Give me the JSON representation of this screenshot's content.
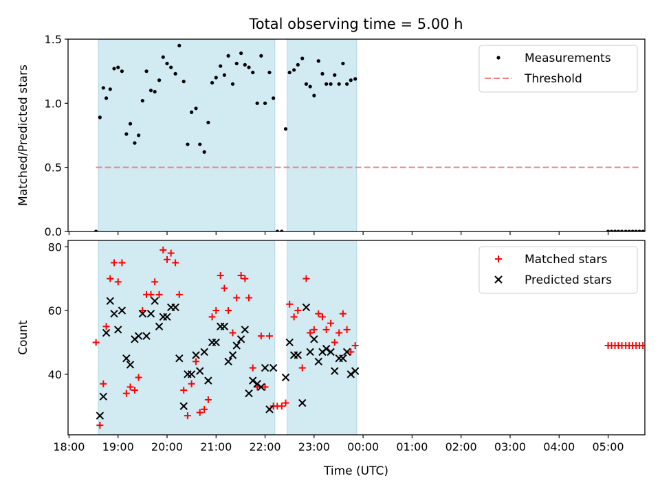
{
  "chart_data": {
    "type": "scatter",
    "title": "Total observing time = 5.00 h",
    "xlabel": "Time (UTC)",
    "x_ticks": [
      "18:00",
      "19:00",
      "20:00",
      "21:00",
      "22:00",
      "23:00",
      "00:00",
      "01:00",
      "02:00",
      "03:00",
      "04:00",
      "05:00"
    ],
    "x_range_hours": [
      17.98,
      29.75
    ],
    "highlight_color": "#add8e6",
    "highlight_spans": [
      [
        18.6,
        22.2
      ],
      [
        22.45,
        23.87
      ]
    ],
    "panels": [
      {
        "ylabel": "Matched/Predicted stars",
        "ylim": [
          0,
          1.5
        ],
        "y_ticks": [
          "0.0",
          "0.5",
          "1.0",
          "1.5"
        ],
        "y_tick_values": [
          0,
          0.5,
          1.0,
          1.5
        ],
        "legend_position": "upper-right",
        "series": [
          {
            "name": "Measurements",
            "marker": "dot",
            "color": "#000000",
            "x": [
              18.55,
              18.63,
              18.7,
              18.76,
              18.84,
              18.92,
              19.0,
              19.08,
              19.17,
              19.25,
              19.34,
              19.42,
              19.5,
              19.58,
              19.67,
              19.75,
              19.84,
              19.92,
              20.0,
              20.08,
              20.17,
              20.25,
              20.34,
              20.42,
              20.5,
              20.59,
              20.67,
              20.76,
              20.84,
              20.92,
              21.0,
              21.09,
              21.17,
              21.25,
              21.34,
              21.42,
              21.51,
              21.59,
              21.67,
              21.75,
              21.84,
              21.92,
              22.0,
              22.09,
              22.17,
              22.25,
              22.34,
              22.42,
              22.5,
              22.59,
              22.67,
              22.76,
              22.84,
              22.92,
              23.0,
              23.09,
              23.17,
              23.25,
              23.34,
              23.42,
              23.51,
              23.59,
              23.67,
              23.75,
              23.84,
              29.0,
              29.07,
              29.14,
              29.21,
              29.28,
              29.36,
              29.43,
              29.5,
              29.57,
              29.64,
              29.71
            ],
            "y": [
              0.0,
              0.89,
              1.12,
              1.04,
              1.11,
              1.27,
              1.28,
              1.25,
              0.76,
              0.84,
              0.69,
              0.75,
              1.02,
              1.25,
              1.1,
              1.09,
              1.18,
              1.36,
              1.31,
              1.28,
              1.23,
              1.45,
              1.17,
              0.68,
              0.93,
              0.96,
              0.68,
              0.62,
              0.85,
              1.16,
              1.2,
              1.29,
              1.22,
              1.37,
              1.15,
              1.31,
              1.39,
              1.3,
              1.28,
              1.24,
              1.0,
              1.37,
              1.0,
              1.24,
              1.04,
              0.0,
              0.0,
              0.8,
              1.24,
              1.26,
              1.3,
              1.35,
              1.15,
              1.13,
              1.06,
              1.33,
              1.23,
              1.15,
              1.15,
              1.22,
              1.15,
              1.31,
              1.15,
              1.18,
              1.19,
              0.0,
              0.0,
              0.0,
              0.0,
              0.0,
              0.0,
              0.0,
              0.0,
              0.0,
              0.0,
              0.0
            ]
          },
          {
            "name": "Threshold",
            "marker": "dashed-line",
            "color": "#f08080",
            "x": [
              18.55,
              29.65
            ],
            "y": [
              0.5,
              0.5
            ]
          }
        ]
      },
      {
        "ylabel": "Count",
        "ylim": [
          21,
          82
        ],
        "y_ticks": [
          "40",
          "60",
          "80"
        ],
        "y_tick_values": [
          40,
          60,
          80
        ],
        "legend_position": "upper-right",
        "series": [
          {
            "name": "Matched stars",
            "marker": "plus",
            "color": "#ff0000",
            "x": [
              18.55,
              18.63,
              18.7,
              18.76,
              18.84,
              18.92,
              19.0,
              19.08,
              19.17,
              19.25,
              19.34,
              19.42,
              19.5,
              19.58,
              19.67,
              19.75,
              19.84,
              19.92,
              20.0,
              20.08,
              20.17,
              20.25,
              20.34,
              20.42,
              20.5,
              20.59,
              20.67,
              20.76,
              20.84,
              20.92,
              21.0,
              21.09,
              21.17,
              21.25,
              21.34,
              21.42,
              21.51,
              21.59,
              21.67,
              21.75,
              21.84,
              21.92,
              22.0,
              22.09,
              22.17,
              22.25,
              22.34,
              22.42,
              22.5,
              22.59,
              22.67,
              22.76,
              22.84,
              22.92,
              23.0,
              23.09,
              23.17,
              23.25,
              23.34,
              23.42,
              23.51,
              23.59,
              23.67,
              23.75,
              23.84,
              29.0,
              29.07,
              29.14,
              29.21,
              29.28,
              29.36,
              29.43,
              29.5,
              29.57,
              29.64,
              29.71
            ],
            "y": [
              50,
              24,
              37,
              55,
              70,
              75,
              69,
              75,
              34,
              36,
              35,
              39,
              60,
              65,
              65,
              69,
              65,
              79,
              76,
              78,
              75,
              65,
              35,
              27,
              37,
              44,
              28,
              29,
              32,
              58,
              60,
              71,
              67,
              60,
              53,
              64,
              71,
              70,
              64,
              42,
              36,
              52,
              36,
              52,
              30,
              30,
              30,
              31,
              62,
              58,
              60,
              42,
              70,
              53,
              54,
              59,
              58,
              54,
              56,
              50,
              53,
              59,
              54,
              47,
              49,
              49,
              49,
              49,
              49,
              49,
              49,
              49,
              49,
              49,
              49,
              49
            ]
          },
          {
            "name": "Predicted stars",
            "marker": "x",
            "color": "#000000",
            "x": [
              18.63,
              18.7,
              18.76,
              18.84,
              18.92,
              19.0,
              19.08,
              19.17,
              19.25,
              19.34,
              19.42,
              19.5,
              19.58,
              19.67,
              19.75,
              19.84,
              19.92,
              20.0,
              20.08,
              20.17,
              20.25,
              20.34,
              20.42,
              20.5,
              20.59,
              20.67,
              20.76,
              20.84,
              20.92,
              21.0,
              21.09,
              21.17,
              21.25,
              21.34,
              21.42,
              21.51,
              21.59,
              21.67,
              21.75,
              21.84,
              21.92,
              22.0,
              22.09,
              22.17,
              22.42,
              22.5,
              22.59,
              22.67,
              22.76,
              22.84,
              22.92,
              23.0,
              23.09,
              23.17,
              23.25,
              23.34,
              23.42,
              23.51,
              23.59,
              23.67,
              23.75,
              23.84
            ],
            "y": [
              27,
              33,
              53,
              63,
              59,
              54,
              60,
              45,
              43,
              51,
              52,
              59,
              52,
              59,
              63,
              55,
              58,
              58,
              61,
              61,
              45,
              30,
              40,
              40,
              46,
              41,
              47,
              38,
              50,
              50,
              55,
              55,
              44,
              46,
              49,
              51,
              54,
              34,
              38,
              37,
              36,
              42,
              29,
              42,
              39,
              50,
              46,
              46,
              31,
              61,
              47,
              51,
              44,
              47,
              48,
              47,
              41,
              45,
              45,
              47,
              40,
              41
            ]
          }
        ]
      }
    ]
  }
}
